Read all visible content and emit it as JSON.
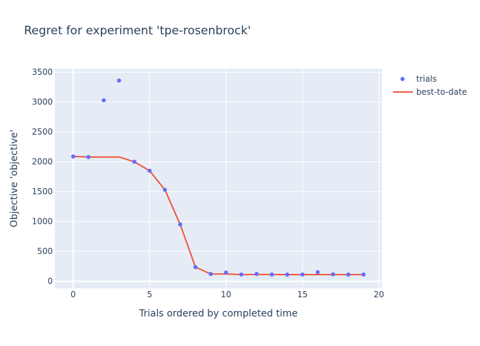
{
  "chart_data": {
    "type": "scatter",
    "title": "Regret for experiment 'tpe-rosenbrock'",
    "xlabel": "Trials ordered by completed time",
    "ylabel": "Objective 'objective'",
    "xlim": [
      -1.2,
      20.2
    ],
    "ylim": [
      -120,
      3560
    ],
    "x_ticks": [
      0,
      5,
      10,
      15,
      20
    ],
    "y_ticks": [
      0,
      500,
      1000,
      1500,
      2000,
      2500,
      3000,
      3500
    ],
    "grid": true,
    "legend_position": "top-right",
    "series": [
      {
        "name": "trials",
        "mode": "markers",
        "color": "#636efa",
        "x": [
          0,
          1,
          2,
          3,
          4,
          5,
          6,
          7,
          8,
          9,
          10,
          11,
          12,
          13,
          14,
          15,
          16,
          17,
          18,
          19
        ],
        "y": [
          2090,
          2080,
          3030,
          3360,
          2000,
          1850,
          1530,
          950,
          235,
          120,
          145,
          112,
          122,
          112,
          110,
          112,
          150,
          115,
          110,
          112
        ]
      },
      {
        "name": "best-to-date",
        "mode": "line",
        "color": "#ef553b",
        "x": [
          0,
          1,
          2,
          3,
          4,
          5,
          6,
          7,
          8,
          9,
          10,
          11,
          12,
          13,
          14,
          15,
          16,
          17,
          18,
          19
        ],
        "y": [
          2090,
          2080,
          2080,
          2080,
          2000,
          1850,
          1530,
          950,
          235,
          120,
          120,
          112,
          112,
          112,
          110,
          110,
          110,
          110,
          110,
          110
        ]
      }
    ]
  }
}
